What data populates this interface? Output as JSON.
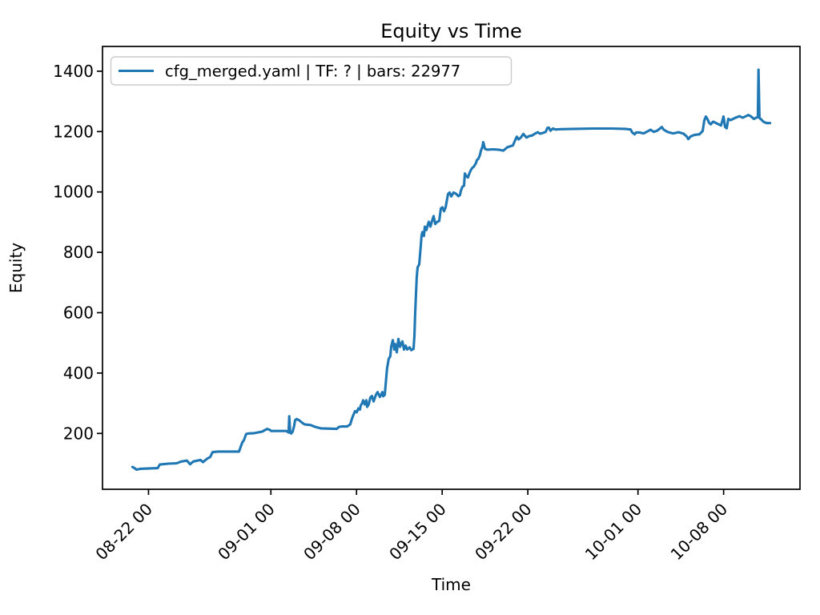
{
  "chart_data": {
    "type": "line",
    "title": "Equity vs Time",
    "xlabel": "Time",
    "ylabel": "Equity",
    "grid": false,
    "legend_position": "upper left",
    "axis_color": "#000000",
    "legend_border_color": "#cccccc",
    "x_ticks": [
      {
        "day": 0,
        "label": "08-22 00"
      },
      {
        "day": 10,
        "label": "09-01 00"
      },
      {
        "day": 17,
        "label": "09-08 00"
      },
      {
        "day": 24,
        "label": "09-15 00"
      },
      {
        "day": 31,
        "label": "09-22 00"
      },
      {
        "day": 40,
        "label": "10-01 00"
      },
      {
        "day": 47,
        "label": "10-08 00"
      }
    ],
    "y_ticks": [
      200,
      400,
      600,
      800,
      1000,
      1200,
      1400
    ],
    "xlim_days": [
      -3.76,
      53.24
    ],
    "ylim": [
      15,
      1482
    ],
    "x_unit": "days relative to 08-22 00:00",
    "series": [
      {
        "name": "cfg_merged.yaml | TF: ? | bars: 22977",
        "color": "#1f77b4",
        "points": [
          [
            -1.31,
            89
          ],
          [
            -1.1,
            84
          ],
          [
            -0.98,
            80
          ],
          [
            -0.65,
            83
          ],
          [
            0.75,
            85
          ],
          [
            0.92,
            97
          ],
          [
            1.64,
            100
          ],
          [
            2.29,
            101
          ],
          [
            2.68,
            107
          ],
          [
            3.14,
            110
          ],
          [
            3.4,
            98
          ],
          [
            3.66,
            107
          ],
          [
            4.25,
            112
          ],
          [
            4.45,
            105
          ],
          [
            4.78,
            116
          ],
          [
            5.04,
            122
          ],
          [
            5.24,
            138
          ],
          [
            5.69,
            140
          ],
          [
            7.4,
            140
          ],
          [
            7.53,
            155
          ],
          [
            7.66,
            170
          ],
          [
            7.79,
            177
          ],
          [
            7.98,
            198
          ],
          [
            8.18,
            200
          ],
          [
            8.64,
            201
          ],
          [
            9.29,
            206
          ],
          [
            9.69,
            215
          ],
          [
            9.95,
            211
          ],
          [
            10.01,
            208
          ],
          [
            11.26,
            208
          ],
          [
            11.45,
            203
          ],
          [
            11.5,
            257
          ],
          [
            11.58,
            203
          ],
          [
            11.65,
            200
          ],
          [
            11.78,
            206
          ],
          [
            11.91,
            226
          ],
          [
            11.98,
            244
          ],
          [
            12.11,
            248
          ],
          [
            12.3,
            244
          ],
          [
            12.57,
            235
          ],
          [
            12.76,
            230
          ],
          [
            13.22,
            228
          ],
          [
            13.61,
            222
          ],
          [
            14.07,
            217
          ],
          [
            15.38,
            215
          ],
          [
            15.58,
            222
          ],
          [
            15.84,
            223
          ],
          [
            16.23,
            223
          ],
          [
            16.49,
            230
          ],
          [
            16.62,
            248
          ],
          [
            16.75,
            262
          ],
          [
            16.88,
            274
          ],
          [
            17.02,
            270
          ],
          [
            17.15,
            283
          ],
          [
            17.28,
            279
          ],
          [
            17.34,
            292
          ],
          [
            17.47,
            301
          ],
          [
            17.54,
            310
          ],
          [
            17.67,
            296
          ],
          [
            17.8,
            310
          ],
          [
            17.87,
            288
          ],
          [
            18,
            297
          ],
          [
            18.13,
            319
          ],
          [
            18.26,
            324
          ],
          [
            18.39,
            306
          ],
          [
            18.59,
            328
          ],
          [
            18.72,
            337
          ],
          [
            18.91,
            321
          ],
          [
            19.11,
            337
          ],
          [
            19.18,
            323
          ],
          [
            19.31,
            328
          ],
          [
            19.44,
            390
          ],
          [
            19.5,
            416
          ],
          [
            19.63,
            447
          ],
          [
            19.76,
            456
          ],
          [
            19.83,
            487
          ],
          [
            19.96,
            509
          ],
          [
            20.09,
            478
          ],
          [
            20.16,
            496
          ],
          [
            20.29,
            469
          ],
          [
            20.42,
            513
          ],
          [
            20.55,
            487
          ],
          [
            20.75,
            505
          ],
          [
            20.88,
            478
          ],
          [
            21.01,
            491
          ],
          [
            21.14,
            478
          ],
          [
            21.34,
            485
          ],
          [
            21.47,
            476
          ],
          [
            21.66,
            480
          ],
          [
            21.73,
            522
          ],
          [
            21.79,
            593
          ],
          [
            21.86,
            664
          ],
          [
            21.92,
            717
          ],
          [
            21.99,
            750
          ],
          [
            22.12,
            760
          ],
          [
            22.18,
            788
          ],
          [
            22.25,
            823
          ],
          [
            22.31,
            854
          ],
          [
            22.38,
            867
          ],
          [
            22.51,
            854
          ],
          [
            22.58,
            885
          ],
          [
            22.71,
            874
          ],
          [
            22.84,
            894
          ],
          [
            22.91,
            901
          ],
          [
            23.04,
            885
          ],
          [
            23.17,
            904
          ],
          [
            23.3,
            920
          ],
          [
            23.43,
            894
          ],
          [
            23.56,
            900
          ],
          [
            23.76,
            904
          ],
          [
            23.89,
            945
          ],
          [
            24.02,
            949
          ],
          [
            24.15,
            936
          ],
          [
            24.28,
            949
          ],
          [
            24.48,
            993
          ],
          [
            24.61,
            998
          ],
          [
            24.74,
            985
          ],
          [
            24.93,
            998
          ],
          [
            25.13,
            994
          ],
          [
            25.33,
            986
          ],
          [
            25.46,
            990
          ],
          [
            25.52,
            1003
          ],
          [
            25.65,
            1017
          ],
          [
            25.79,
            1021
          ],
          [
            25.85,
            1061
          ],
          [
            25.98,
            1052
          ],
          [
            26.11,
            1048
          ],
          [
            26.18,
            1057
          ],
          [
            26.31,
            1070
          ],
          [
            26.44,
            1079
          ],
          [
            26.57,
            1083
          ],
          [
            26.77,
            1096
          ],
          [
            26.83,
            1105
          ],
          [
            26.96,
            1110
          ],
          [
            27.09,
            1123
          ],
          [
            27.16,
            1136
          ],
          [
            27.29,
            1150
          ],
          [
            27.36,
            1165
          ],
          [
            27.49,
            1143
          ],
          [
            27.68,
            1140
          ],
          [
            28.14,
            1141
          ],
          [
            28.6,
            1140
          ],
          [
            29,
            1137
          ],
          [
            29.32,
            1148
          ],
          [
            29.78,
            1154
          ],
          [
            29.97,
            1172
          ],
          [
            30.1,
            1183
          ],
          [
            30.24,
            1174
          ],
          [
            30.43,
            1180
          ],
          [
            30.63,
            1192
          ],
          [
            30.89,
            1180
          ],
          [
            31.09,
            1185
          ],
          [
            31.35,
            1187
          ],
          [
            31.54,
            1192
          ],
          [
            31.81,
            1198
          ],
          [
            32,
            1193
          ],
          [
            32.2,
            1195
          ],
          [
            32.46,
            1199
          ],
          [
            32.59,
            1212
          ],
          [
            32.72,
            1213
          ],
          [
            32.85,
            1203
          ],
          [
            33.05,
            1210
          ],
          [
            33.25,
            1207
          ],
          [
            33.7,
            1208
          ],
          [
            34.82,
            1209
          ],
          [
            36.32,
            1210
          ],
          [
            37.83,
            1210
          ],
          [
            38.94,
            1209
          ],
          [
            39.4,
            1207
          ],
          [
            39.53,
            1197
          ],
          [
            39.73,
            1191
          ],
          [
            39.86,
            1197
          ],
          [
            40.12,
            1197
          ],
          [
            40.45,
            1194
          ],
          [
            40.71,
            1199
          ],
          [
            41.03,
            1206
          ],
          [
            41.3,
            1199
          ],
          [
            41.56,
            1203
          ],
          [
            41.82,
            1211
          ],
          [
            41.95,
            1215
          ],
          [
            42.08,
            1207
          ],
          [
            42.41,
            1199
          ],
          [
            42.87,
            1194
          ],
          [
            43.32,
            1198
          ],
          [
            43.72,
            1193
          ],
          [
            43.98,
            1184
          ],
          [
            44.11,
            1175
          ],
          [
            44.31,
            1184
          ],
          [
            44.63,
            1189
          ],
          [
            45.03,
            1191
          ],
          [
            45.29,
            1202
          ],
          [
            45.42,
            1237
          ],
          [
            45.55,
            1250
          ],
          [
            45.68,
            1241
          ],
          [
            45.81,
            1229
          ],
          [
            45.94,
            1224
          ],
          [
            46.14,
            1233
          ],
          [
            46.34,
            1229
          ],
          [
            46.6,
            1224
          ],
          [
            46.79,
            1220
          ],
          [
            46.99,
            1250
          ],
          [
            47.12,
            1215
          ],
          [
            47.25,
            1211
          ],
          [
            47.38,
            1242
          ],
          [
            47.58,
            1238
          ],
          [
            47.77,
            1242
          ],
          [
            47.97,
            1246
          ],
          [
            48.3,
            1251
          ],
          [
            48.56,
            1246
          ],
          [
            48.82,
            1251
          ],
          [
            49.02,
            1255
          ],
          [
            49.21,
            1251
          ],
          [
            49.48,
            1242
          ],
          [
            49.67,
            1246
          ],
          [
            49.8,
            1248
          ],
          [
            49.85,
            1405
          ],
          [
            49.93,
            1245
          ],
          [
            50.07,
            1240
          ],
          [
            50.26,
            1232
          ],
          [
            50.52,
            1228
          ],
          [
            50.79,
            1228
          ]
        ]
      }
    ]
  }
}
